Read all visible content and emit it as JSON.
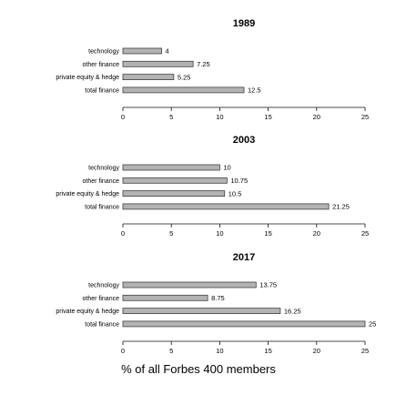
{
  "chart_data": [
    {
      "type": "bar",
      "orientation": "horizontal",
      "title": "1989",
      "categories": [
        "technology",
        "other finance",
        "private equity & hedge",
        "total finance"
      ],
      "values": [
        4,
        7.25,
        5.25,
        12.5
      ],
      "value_labels": [
        "4",
        "7.25",
        "5.25",
        "12.5"
      ],
      "xlim": [
        0,
        25
      ],
      "xticks": [
        "0",
        "5",
        "10",
        "15",
        "20",
        "25"
      ],
      "grid": false
    },
    {
      "type": "bar",
      "orientation": "horizontal",
      "title": "2003",
      "categories": [
        "technology",
        "other finance",
        "private equity & hedge",
        "total finance"
      ],
      "values": [
        10,
        10.75,
        10.5,
        21.25
      ],
      "value_labels": [
        "10",
        "10.75",
        "10.5",
        "21.25"
      ],
      "xlim": [
        0,
        25
      ],
      "xticks": [
        "0",
        "5",
        "10",
        "15",
        "20",
        "25"
      ],
      "grid": false
    },
    {
      "type": "bar",
      "orientation": "horizontal",
      "title": "2017",
      "categories": [
        "technology",
        "other finance",
        "private equity & hedge",
        "total finance"
      ],
      "values": [
        13.75,
        8.75,
        16.25,
        25
      ],
      "value_labels": [
        "13.75",
        "8.75",
        "16.25",
        "25"
      ],
      "xlim": [
        0,
        25
      ],
      "xticks": [
        "0",
        "5",
        "10",
        "15",
        "20",
        "25"
      ],
      "grid": false
    }
  ],
  "xlabel": "% of all Forbes 400 members",
  "colors": {
    "bar_fill": "#b3b3b3",
    "bar_stroke": "#404040",
    "axis": "#111111"
  }
}
